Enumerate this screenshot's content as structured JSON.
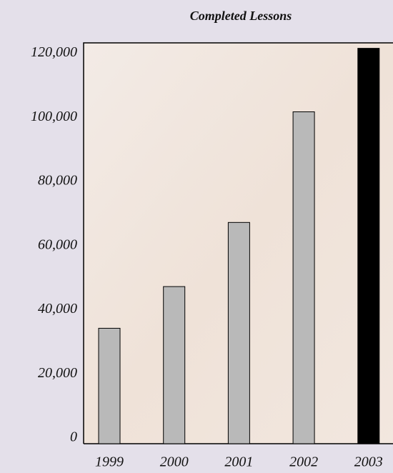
{
  "chart_data": {
    "type": "bar",
    "title": "Completed Lessons",
    "categories": [
      "1999",
      "2000",
      "2001",
      "2002",
      "2003"
    ],
    "values": [
      36000,
      49000,
      69000,
      103500,
      123300
    ],
    "colors": [
      "#b9b9b9",
      "#b9b9b9",
      "#b9b9b9",
      "#b9b9b9",
      "#000000"
    ],
    "ylim": [
      0,
      125000
    ],
    "yticks": [
      0,
      {
        "value": 20000,
        "label": "20,000"
      },
      {
        "value": 40000,
        "label": "40,000"
      },
      {
        "value": 60000,
        "label": "60,000"
      },
      {
        "value": 80000,
        "label": "80,000"
      },
      {
        "value": 100000,
        "label": "100,000"
      },
      {
        "value": 120000,
        "label": "120,000"
      }
    ]
  }
}
